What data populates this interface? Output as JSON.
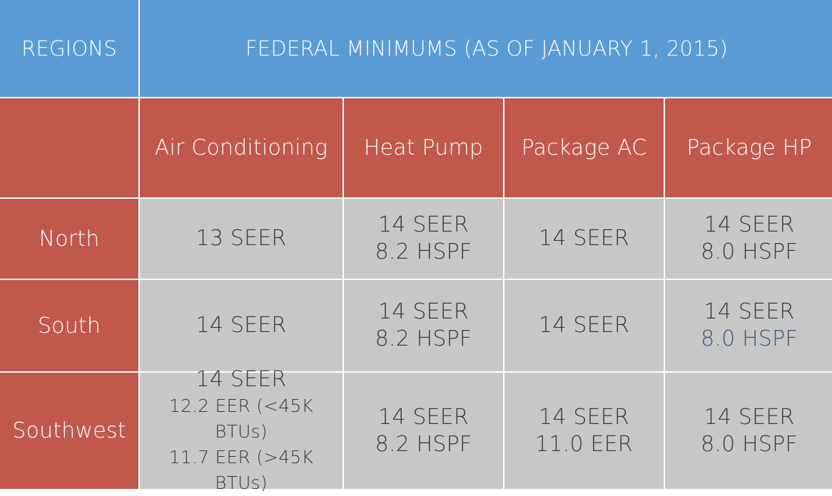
{
  "header": {
    "regions_label": "REGIONS",
    "federal_label": "FEDERAL MINIMUMS (AS OF JANUARY 1, 2015)"
  },
  "columns": [
    "Air Conditioning",
    "Heat Pump",
    "Package AC",
    "Package HP"
  ],
  "rows": [
    {
      "region": "North",
      "cells": [
        [
          "13 SEER"
        ],
        [
          "14 SEER",
          "8.2 HSPF"
        ],
        [
          "14 SEER"
        ],
        [
          "14 SEER",
          "8.0 HSPF"
        ]
      ]
    },
    {
      "region": "South",
      "cells": [
        [
          "14 SEER"
        ],
        [
          "14 SEER",
          "8.2 HSPF"
        ],
        [
          "14 SEER"
        ],
        [
          "14 SEER",
          "8.0 HSPF"
        ]
      ]
    },
    {
      "region": "Southwest",
      "cells": [
        [
          "14 SEER",
          "12.2 EER (<45K BTUs)",
          "11.7 EER (>45K BTUs)"
        ],
        [
          "14 SEER",
          "8.2 HSPF"
        ],
        [
          "14 SEER",
          "11.0 EER"
        ],
        [
          "14 SEER",
          "8.0 HSPF"
        ]
      ]
    }
  ],
  "colors": {
    "header_blue": "#5b9bd5",
    "region_red": "#c0584c",
    "cell_gray": "#c7c7c7",
    "text_dark": "#3a3a3a",
    "accent_text": "#3d5871"
  }
}
